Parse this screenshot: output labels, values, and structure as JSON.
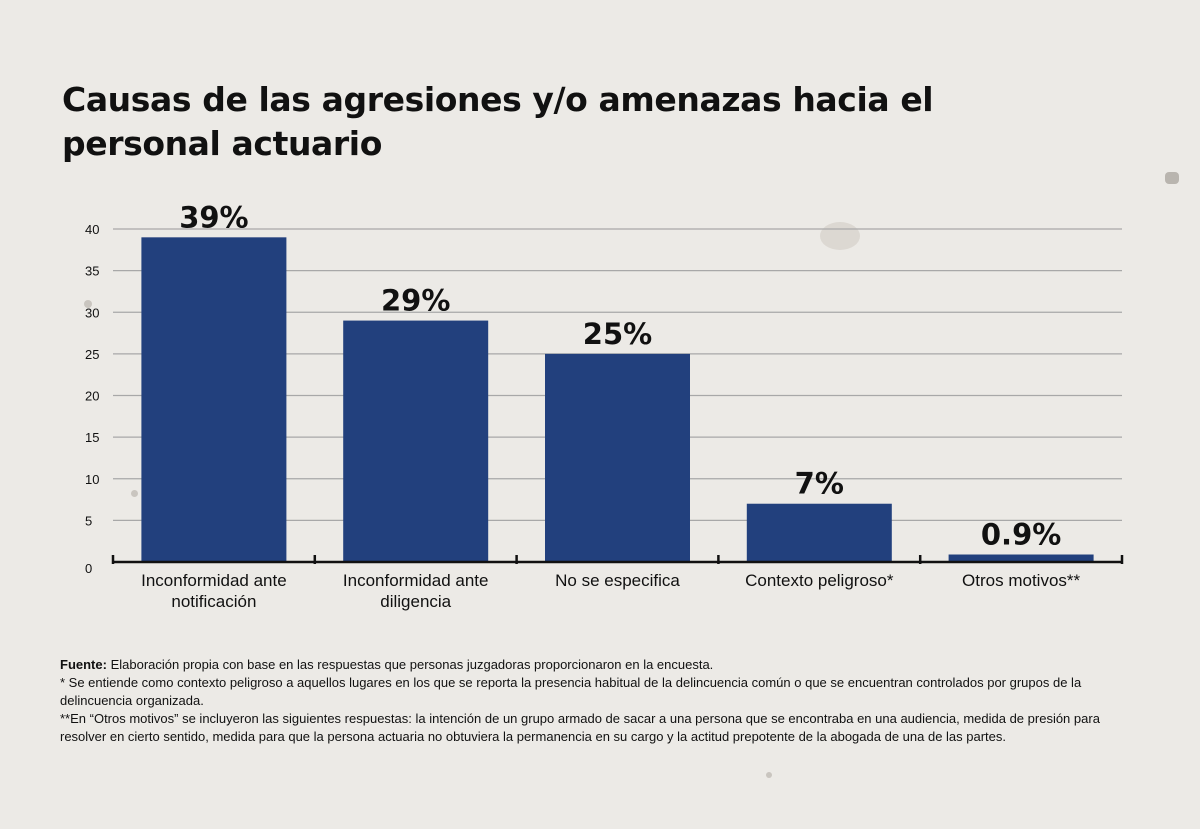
{
  "title": "Causas de las agresiones y/o amenazas hacia el personal actuario",
  "chart_data": {
    "type": "bar",
    "title": "Causas de las agresiones y/o amenazas hacia el personal actuario",
    "categories": [
      [
        "Inconformidad ante",
        "notificación"
      ],
      [
        "Inconformidad ante",
        "diligencia"
      ],
      [
        "No se especifica"
      ],
      [
        "Contexto peligroso*"
      ],
      [
        "Otros motivos**"
      ]
    ],
    "values": [
      39,
      29,
      25,
      7,
      0.9
    ],
    "value_labels": [
      "39%",
      "29%",
      "25%",
      "7%",
      "0.9%"
    ],
    "yticks": [
      "0",
      "5",
      "10",
      "15",
      "20",
      "25",
      "30",
      "35",
      "40"
    ],
    "ylim": [
      0,
      40
    ],
    "xlabel": "",
    "ylabel": "",
    "grid": true,
    "bar_color": "#22407d",
    "grid_color": "#a8a8a8"
  },
  "notes": {
    "source_label": "Fuente:",
    "source_text": " Elaboración propia con base en las respuestas que personas juzgadoras proporcionaron en la encuesta.",
    "note1": "* Se entiende como contexto peligroso a aquellos lugares en los que se reporta la presencia habitual de la delincuencia común o que se encuentran controlados por grupos de la delincuencia organizada.",
    "note2": "**En “Otros motivos” se incluyeron las siguientes respuestas: la intención de un grupo armado de sacar a una persona que se encontraba en una audiencia, medida de presión para resolver en cierto sentido, medida para que la persona actuaria no obtuviera la permanencia en su cargo y la actitud prepotente de la abogada de una de las partes."
  }
}
